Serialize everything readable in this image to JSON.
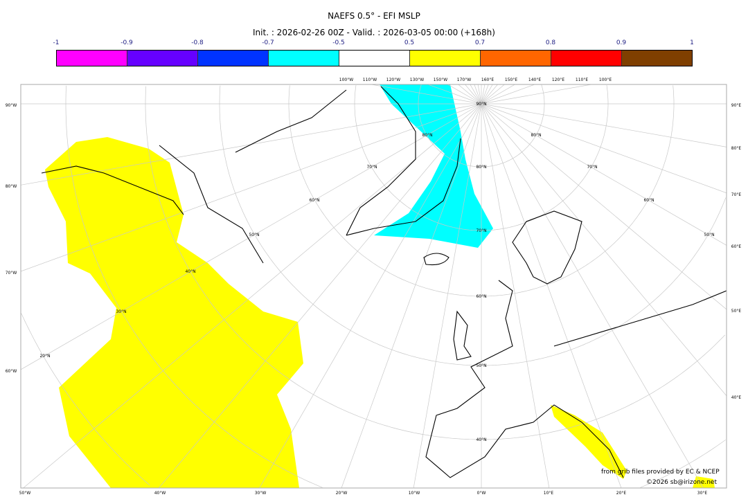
{
  "title": "NAEFS 0.5° - EFI MSLP",
  "subtitle": "Init. : 2026-02-26 00Z - Valid. : 2026-03-05 00:00 (+168h)",
  "colorbar": {
    "ticks": [
      "-1",
      "-0.9",
      "-0.8",
      "-0.7",
      "-0.5",
      "0.5",
      "0.7",
      "0.8",
      "0.9",
      "1"
    ],
    "colors": [
      "#ff00ff",
      "#6600ff",
      "#0033ff",
      "#00ffff",
      "#ffffff",
      "#ffff00",
      "#ff6600",
      "#ff0000",
      "#7f3f00"
    ]
  },
  "map": {
    "projection": "polar stereographic",
    "left_labels": [
      "90°W",
      "80°W",
      "70°W",
      "60°W"
    ],
    "right_labels": [
      "90°E",
      "80°E",
      "70°E",
      "60°E",
      "50°E",
      "40°E"
    ],
    "bottom_labels": [
      "50°W",
      "40°W",
      "30°W",
      "20°W",
      "10°W",
      "0°W",
      "10°E",
      "20°E",
      "30°E"
    ],
    "top_labels": [
      "100°W",
      "110°W",
      "120°W",
      "130°W",
      "150°W",
      "170°W",
      "160°E",
      "150°E",
      "140°E",
      "120°E",
      "110°E",
      "100°E"
    ],
    "lat_labels": [
      "90°N",
      "80°N",
      "70°N",
      "60°N",
      "50°N",
      "40°N",
      "30°N",
      "20°N"
    ],
    "fields": [
      {
        "region": "western Atlantic / Canada",
        "efi_class": "0.5 to 0.7",
        "color": "#ffff00"
      },
      {
        "region": "Greenland Sea / Greenland east",
        "efi_class": "-0.7 to -0.5",
        "color": "#00ffff"
      },
      {
        "region": "Italy / Adriatic",
        "efi_class": "0.5 to 0.7",
        "color": "#ffff00"
      }
    ]
  },
  "footer": {
    "credit": "from grib files provided by EC & NCEP",
    "copyright": "©2026 sb@irizone.net"
  }
}
